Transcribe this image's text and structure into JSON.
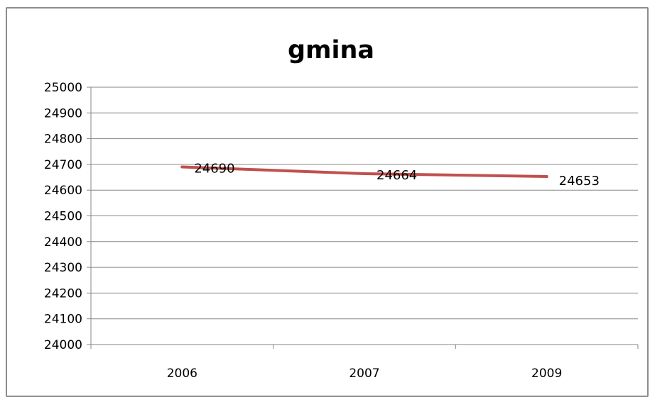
{
  "chart_data": {
    "type": "line",
    "title": "gmina",
    "xlabel": "",
    "ylabel": "",
    "categories": [
      "2006",
      "2007",
      "2009"
    ],
    "series": [
      {
        "values": [
          24690,
          24664,
          24653
        ],
        "color": "#c0504d"
      }
    ],
    "data_labels": [
      "24690",
      "24664",
      "24653"
    ],
    "ylim": [
      24000,
      25000
    ],
    "y_ticks": [
      24000,
      24100,
      24200,
      24300,
      24400,
      24500,
      24600,
      24700,
      24800,
      24900,
      25000
    ],
    "grid": true,
    "legend": "none",
    "colors": {
      "gridline": "#868686",
      "frame": "#8c8c8c",
      "series": "#c0504d"
    }
  }
}
